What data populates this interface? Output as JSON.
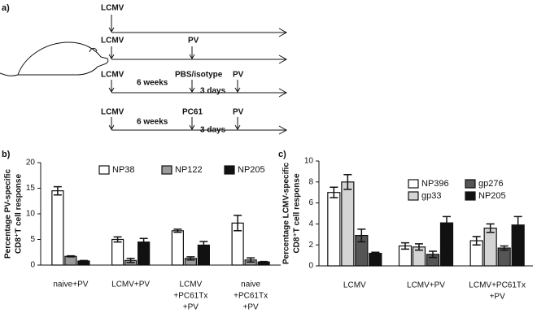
{
  "diagram": {
    "label": "a)",
    "rows": [
      [
        "LCMV"
      ],
      [
        "LCMV",
        "PV"
      ],
      [
        "LCMV",
        "6 weeks",
        "PBS/isotype",
        "3 days",
        "PV"
      ],
      [
        "LCMV",
        "6 weeks",
        "PC61",
        "3 days",
        "PV"
      ]
    ]
  },
  "chart_data": [
    {
      "type": "bar",
      "panel_label": "b)",
      "ylabel": [
        "Percentage PV-specific",
        "CD8⁺T cell response"
      ],
      "categories": [
        [
          "naive+PV"
        ],
        [
          "LCMV+PV"
        ],
        [
          "LCMV",
          "+PC61Tx",
          "+PV"
        ],
        [
          "naive",
          "+PC61Tx",
          "+PV"
        ]
      ],
      "series": [
        {
          "name": "NP38",
          "color": "#ffffff",
          "values": [
            14.5,
            5.0,
            6.7,
            8.2
          ],
          "errors": [
            0.8,
            0.5,
            0.3,
            1.5
          ]
        },
        {
          "name": "NP122",
          "color": "#9a9a9a",
          "values": [
            1.7,
            0.9,
            1.3,
            1.0
          ],
          "errors": [
            0.1,
            0.4,
            0.3,
            0.4
          ]
        },
        {
          "name": "NP205",
          "color": "#111111",
          "values": [
            0.8,
            4.5,
            3.9,
            0.6
          ],
          "errors": [
            0.1,
            0.7,
            0.7,
            0.1
          ]
        }
      ],
      "ylim": [
        0,
        20
      ],
      "yticks": [
        0,
        5,
        10,
        15,
        20
      ],
      "grid": false
    },
    {
      "type": "bar",
      "panel_label": "c)",
      "ylabel": [
        "Percentage LCMV-specific",
        "CD8⁺T cell response"
      ],
      "categories": [
        [
          "LCMV"
        ],
        [
          "LCMV+PV"
        ],
        [
          "LCMV+PC61Tx",
          "+PV"
        ]
      ],
      "series": [
        {
          "name": "NP396",
          "color": "#ffffff",
          "values": [
            7.0,
            1.9,
            2.4
          ],
          "errors": [
            0.5,
            0.3,
            0.4
          ]
        },
        {
          "name": "gp33",
          "color": "#d4d4d4",
          "values": [
            8.0,
            1.8,
            3.6
          ],
          "errors": [
            0.7,
            0.3,
            0.4
          ]
        },
        {
          "name": "gp276",
          "color": "#555555",
          "values": [
            2.9,
            1.1,
            1.7
          ],
          "errors": [
            0.6,
            0.3,
            0.2
          ]
        },
        {
          "name": "NP205",
          "color": "#111111",
          "values": [
            1.2,
            4.1,
            3.9
          ],
          "errors": [
            0.1,
            0.6,
            0.8
          ]
        }
      ],
      "ylim": [
        0,
        10
      ],
      "yticks": [
        0,
        2,
        4,
        6,
        8,
        10
      ],
      "grid": false
    }
  ]
}
